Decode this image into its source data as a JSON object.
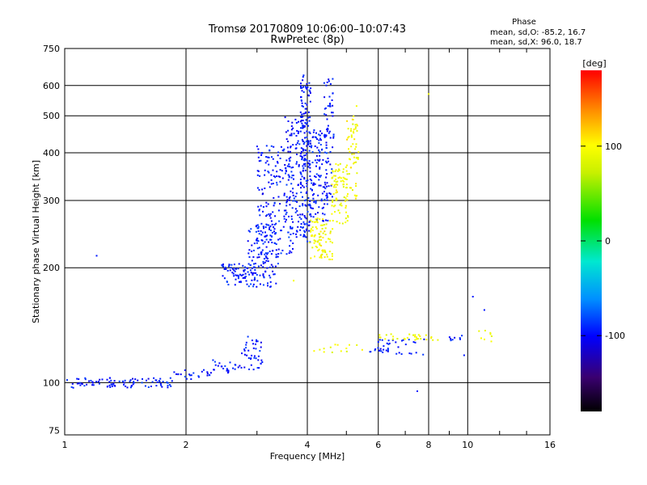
{
  "chart_data": {
    "type": "scatter",
    "title": "Tromsø 20170809 10:06:00–10:07:43",
    "subtitle": "RwPretec (8p)",
    "xlabel": "Frequency [MHz]",
    "ylabel": "Stationary phase Virtual Height [km]",
    "x_scale": "log",
    "y_scale": "log",
    "xlim": [
      1,
      16
    ],
    "ylim": [
      73,
      750
    ],
    "x_ticks": [
      1,
      2,
      4,
      6,
      8,
      10,
      16
    ],
    "y_ticks": [
      75,
      100,
      200,
      300,
      400,
      500,
      600,
      750
    ],
    "x_tick_labels": [
      "1",
      "2",
      "4",
      "6",
      "8",
      "10",
      "16"
    ],
    "y_tick_labels": [
      "75",
      "100",
      "200",
      "300",
      "400",
      "500",
      "600",
      "750"
    ],
    "grid": true,
    "phase_stats": {
      "title": "Phase",
      "line_o": "mean, sd,O: -85.2, 16.7",
      "line_x": "mean, sd,X:  96.0, 18.7"
    },
    "colorbar": {
      "label": "[deg]",
      "range": [
        -180,
        180
      ],
      "ticks": [
        -100,
        0,
        100
      ],
      "tick_labels": [
        "-100",
        "0",
        "100"
      ]
    },
    "series": [
      {
        "mode": "O",
        "phase_deg": -95,
        "clusters": [
          {
            "x_range": [
              1.0,
              1.85
            ],
            "y_range": [
              97,
              103
            ],
            "n": 90
          },
          {
            "x_range": [
              1.85,
              2.3
            ],
            "y_range": [
              102,
              108
            ],
            "n": 22
          },
          {
            "x_range": [
              2.3,
              2.75
            ],
            "y_range": [
              106,
              115
            ],
            "n": 26
          },
          {
            "x_range": [
              2.75,
              3.1
            ],
            "y_range": [
              108,
              132
            ],
            "n": 40
          },
          {
            "x_range": [
              2.45,
              2.95
            ],
            "y_range": [
              180,
              205
            ],
            "n": 70
          },
          {
            "x_range": [
              2.85,
              3.4
            ],
            "y_range": [
              178,
              260
            ],
            "n": 120
          },
          {
            "x_range": [
              3.0,
              3.7
            ],
            "y_range": [
              215,
              420
            ],
            "n": 180
          },
          {
            "x_range": [
              3.5,
              3.95
            ],
            "y_range": [
              240,
              500
            ],
            "n": 120
          },
          {
            "x_range": [
              3.85,
              4.08
            ],
            "y_range": [
              230,
              650
            ],
            "n": 160
          },
          {
            "x_range": [
              4.05,
              4.5
            ],
            "y_range": [
              265,
              460
            ],
            "n": 110
          },
          {
            "x_range": [
              4.4,
              4.65
            ],
            "y_range": [
              300,
              640
            ],
            "n": 70
          },
          {
            "x_range": [
              5.7,
              7.8
            ],
            "y_range": [
              118,
              130
            ],
            "n": 40
          },
          {
            "x_range": [
              8.9,
              9.7
            ],
            "y_range": [
              129,
              133
            ],
            "n": 8
          }
        ],
        "points": [
          [
            1.2,
            215
          ],
          [
            1.05,
            97
          ],
          [
            7.5,
            95
          ],
          [
            10.3,
            168
          ],
          [
            11.0,
            155
          ],
          [
            9.8,
            118
          ]
        ]
      },
      {
        "mode": "X",
        "phase_deg": 96,
        "clusters": [
          {
            "x_range": [
              4.05,
              4.65
            ],
            "y_range": [
              210,
              270
            ],
            "n": 90
          },
          {
            "x_range": [
              4.6,
              5.05
            ],
            "y_range": [
              260,
              380
            ],
            "n": 80
          },
          {
            "x_range": [
              5.0,
              5.4
            ],
            "y_range": [
              300,
              500
            ],
            "n": 60
          },
          {
            "x_range": [
              3.9,
              5.5
            ],
            "y_range": [
              120,
              126
            ],
            "n": 14
          },
          {
            "x_range": [
              6.0,
              8.5
            ],
            "y_range": [
              129,
              134
            ],
            "n": 30
          },
          {
            "x_range": [
              10.5,
              11.5
            ],
            "y_range": [
              128,
              138
            ],
            "n": 8
          }
        ],
        "points": [
          [
            8.0,
            570
          ],
          [
            3.7,
            185
          ],
          [
            5.3,
            530
          ]
        ]
      }
    ]
  }
}
